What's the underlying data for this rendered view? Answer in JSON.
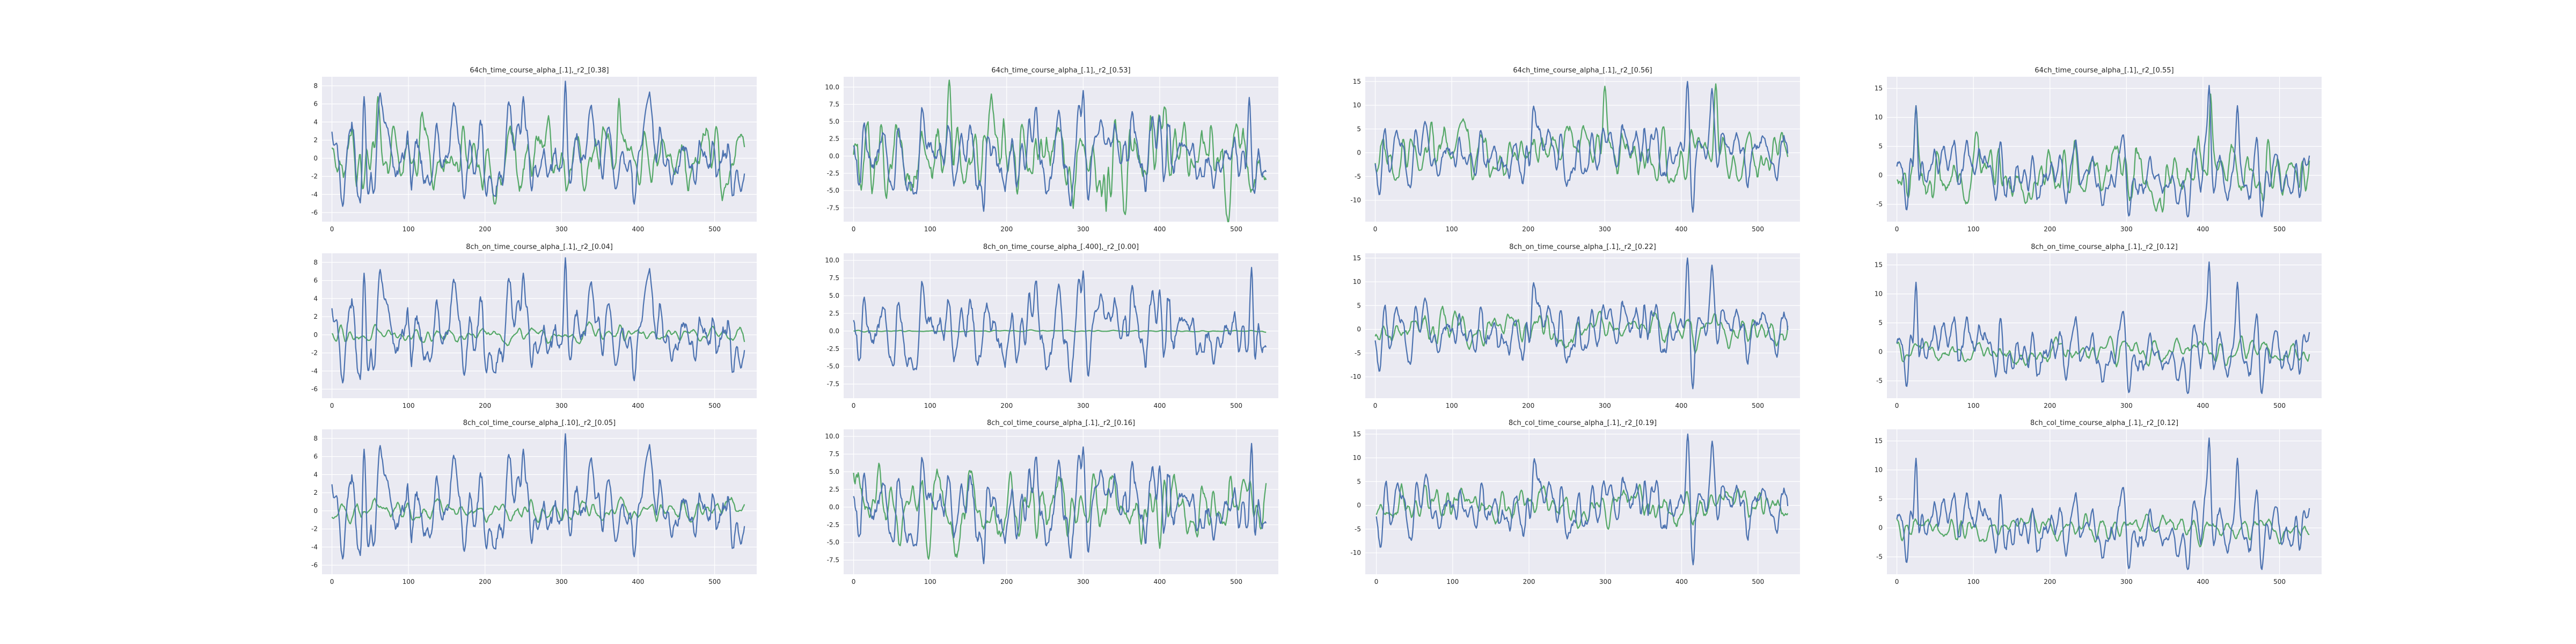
{
  "chart_data": [
    {
      "type": "line",
      "title": "64ch_time_course_alpha_[.1],_r2_[0.38]",
      "xlim": [
        -13,
        555
      ],
      "ylim": [
        -7.0,
        9.0
      ],
      "xticks": [
        0,
        100,
        200,
        300,
        400,
        500
      ],
      "yticks": [
        -6,
        -4,
        -2,
        0,
        2,
        4,
        6,
        8
      ],
      "n_points": 540,
      "series": [
        {
          "color": "#4c72b0",
          "amplitude": 2.6,
          "spikes": [
            [
              305,
              8.5
            ],
            [
              42,
              6.8
            ],
            [
              250,
              6.8
            ]
          ]
        },
        {
          "color": "#55a868",
          "amplitude": 1.9,
          "spikes": [
            [
              60,
              6.8
            ],
            [
              375,
              6.6
            ]
          ]
        }
      ]
    },
    {
      "type": "line",
      "title": "64ch_time_course_alpha_[.1],_r2_[0.53]",
      "xlim": [
        -13,
        555
      ],
      "ylim": [
        -9.5,
        11.5
      ],
      "xticks": [
        0,
        100,
        200,
        300,
        400,
        500
      ],
      "yticks": [
        -7.5,
        -5.0,
        -2.5,
        0.0,
        2.5,
        5.0,
        7.5,
        10.0
      ],
      "n_points": 540,
      "series": [
        {
          "color": "#4c72b0",
          "amplitude": 3.0,
          "spikes": [
            [
              300,
              9.5
            ],
            [
              517,
              8.5
            ],
            [
              170,
              -8.0
            ]
          ]
        },
        {
          "color": "#55a868",
          "amplitude": 3.2,
          "spikes": [
            [
              125,
              11.0
            ],
            [
              330,
              -8.0
            ]
          ]
        }
      ]
    },
    {
      "type": "line",
      "title": "64ch_time_course_alpha_[.1],_r2_[0.56]",
      "xlim": [
        -13,
        555
      ],
      "ylim": [
        -14.5,
        16.0
      ],
      "xticks": [
        0,
        100,
        200,
        300,
        400,
        500
      ],
      "yticks": [
        -10,
        -5,
        0,
        5,
        10,
        15
      ],
      "n_points": 540,
      "series": [
        {
          "color": "#4c72b0",
          "amplitude": 3.2,
          "spikes": [
            [
              408,
              15.0
            ],
            [
              440,
              13.5
            ],
            [
              415,
              -12.5
            ]
          ]
        },
        {
          "color": "#55a868",
          "amplitude": 3.0,
          "spikes": [
            [
              300,
              14.0
            ],
            [
              445,
              14.5
            ]
          ]
        }
      ]
    },
    {
      "type": "line",
      "title": "64ch_time_course_alpha_[.1],_r2_[0.55]",
      "xlim": [
        -13,
        555
      ],
      "ylim": [
        -8.0,
        17.0
      ],
      "xticks": [
        0,
        100,
        200,
        300,
        400,
        500
      ],
      "yticks": [
        -5,
        0,
        5,
        10,
        15
      ],
      "n_points": 540,
      "series": [
        {
          "color": "#4c72b0",
          "amplitude": 2.8,
          "spikes": [
            [
              408,
              15.5
            ],
            [
              445,
              12.0
            ],
            [
              25,
              12.0
            ]
          ]
        },
        {
          "color": "#55a868",
          "amplitude": 2.6,
          "spikes": [
            [
              410,
              14.0
            ],
            [
              25,
              12.0
            ]
          ]
        }
      ]
    },
    {
      "type": "line",
      "title": "8ch_on_time_course_alpha_[.1],_r2_[0.04]",
      "xlim": [
        -13,
        555
      ],
      "ylim": [
        -7.0,
        9.0
      ],
      "xticks": [
        0,
        100,
        200,
        300,
        400,
        500
      ],
      "yticks": [
        -6,
        -4,
        -2,
        0,
        2,
        4,
        6,
        8
      ],
      "n_points": 540,
      "series": [
        {
          "color": "#4c72b0",
          "amplitude": 2.6,
          "spikes": [
            [
              305,
              8.5
            ],
            [
              42,
              6.8
            ],
            [
              250,
              6.8
            ]
          ]
        },
        {
          "color": "#55a868",
          "amplitude": 0.45,
          "spikes": []
        }
      ]
    },
    {
      "type": "line",
      "title": "8ch_on_time_course_alpha_[.400],_r2_[0.00]",
      "xlim": [
        -13,
        555
      ],
      "ylim": [
        -9.5,
        11.0
      ],
      "xticks": [
        0,
        100,
        200,
        300,
        400,
        500
      ],
      "yticks": [
        -7.5,
        -5.0,
        -2.5,
        0.0,
        2.5,
        5.0,
        7.5,
        10.0
      ],
      "n_points": 540,
      "series": [
        {
          "color": "#4c72b0",
          "amplitude": 3.0,
          "spikes": [
            [
              520,
              9.0
            ],
            [
              300,
              8.5
            ]
          ]
        },
        {
          "color": "#55a868",
          "amplitude": 0.05,
          "spikes": []
        }
      ]
    },
    {
      "type": "line",
      "title": "8ch_on_time_course_alpha_[.1],_r2_[0.22]",
      "xlim": [
        -13,
        555
      ],
      "ylim": [
        -14.5,
        16.0
      ],
      "xticks": [
        0,
        100,
        200,
        300,
        400,
        500
      ],
      "yticks": [
        -10,
        -5,
        0,
        5,
        10,
        15
      ],
      "n_points": 540,
      "series": [
        {
          "color": "#4c72b0",
          "amplitude": 3.2,
          "spikes": [
            [
              408,
              15.0
            ],
            [
              440,
              13.5
            ],
            [
              415,
              -12.5
            ]
          ]
        },
        {
          "color": "#55a868",
          "amplitude": 1.8,
          "spikes": []
        }
      ]
    },
    {
      "type": "line",
      "title": "8ch_on_time_course_alpha_[.1],_r2_[0.12]",
      "xlim": [
        -13,
        555
      ],
      "ylim": [
        -8.0,
        17.0
      ],
      "xticks": [
        0,
        100,
        200,
        300,
        400,
        500
      ],
      "yticks": [
        -5,
        0,
        5,
        10,
        15
      ],
      "n_points": 540,
      "series": [
        {
          "color": "#4c72b0",
          "amplitude": 2.8,
          "spikes": [
            [
              408,
              15.5
            ],
            [
              445,
              12.0
            ],
            [
              25,
              12.0
            ]
          ]
        },
        {
          "color": "#55a868",
          "amplitude": 1.1,
          "spikes": []
        }
      ]
    },
    {
      "type": "line",
      "title": "8ch_col_time_course_alpha_[.10],_r2_[0.05]",
      "xlim": [
        -13,
        555
      ],
      "ylim": [
        -7.0,
        9.0
      ],
      "xticks": [
        0,
        100,
        200,
        300,
        400,
        500
      ],
      "yticks": [
        -6,
        -4,
        -2,
        0,
        2,
        4,
        6,
        8
      ],
      "n_points": 540,
      "series": [
        {
          "color": "#4c72b0",
          "amplitude": 2.6,
          "spikes": [
            [
              305,
              8.5
            ],
            [
              42,
              6.8
            ],
            [
              250,
              6.8
            ]
          ]
        },
        {
          "color": "#55a868",
          "amplitude": 0.6,
          "spikes": []
        }
      ]
    },
    {
      "type": "line",
      "title": "8ch_col_time_course_alpha_[.1],_r2_[0.16]",
      "xlim": [
        -13,
        555
      ],
      "ylim": [
        -9.5,
        11.0
      ],
      "xticks": [
        0,
        100,
        200,
        300,
        400,
        500
      ],
      "yticks": [
        -7.5,
        -5.0,
        -2.5,
        0.0,
        2.5,
        5.0,
        7.5,
        10.0
      ],
      "n_points": 540,
      "series": [
        {
          "color": "#4c72b0",
          "amplitude": 3.0,
          "spikes": [
            [
              520,
              9.0
            ],
            [
              300,
              8.5
            ],
            [
              170,
              -8.0
            ]
          ]
        },
        {
          "color": "#55a868",
          "amplitude": 2.6,
          "spikes": []
        }
      ]
    },
    {
      "type": "line",
      "title": "8ch_col_time_course_alpha_[.1],_r2_[0.19]",
      "xlim": [
        -14.5,
        555
      ],
      "ylim": [
        -14.5,
        16.0
      ],
      "xticks": [
        0,
        100,
        200,
        300,
        400,
        500
      ],
      "yticks": [
        -10,
        -5,
        0,
        5,
        10,
        15
      ],
      "n_points": 540,
      "series": [
        {
          "color": "#4c72b0",
          "amplitude": 3.2,
          "spikes": [
            [
              408,
              15.0
            ],
            [
              440,
              13.5
            ],
            [
              415,
              -12.5
            ]
          ]
        },
        {
          "color": "#55a868",
          "amplitude": 1.9,
          "spikes": []
        }
      ]
    },
    {
      "type": "line",
      "title": "8ch_col_time_course_alpha_[.1],_r2_[0.12]",
      "xlim": [
        -13,
        555
      ],
      "ylim": [
        -8.0,
        17.0
      ],
      "xticks": [
        0,
        100,
        200,
        300,
        400,
        500
      ],
      "yticks": [
        -5,
        0,
        5,
        10,
        15
      ],
      "n_points": 540,
      "series": [
        {
          "color": "#4c72b0",
          "amplitude": 2.8,
          "spikes": [
            [
              408,
              15.5
            ],
            [
              445,
              12.0
            ],
            [
              25,
              12.0
            ]
          ]
        },
        {
          "color": "#55a868",
          "amplitude": 1.1,
          "spikes": []
        }
      ]
    }
  ],
  "colors": {
    "panel_bg": "#eaeaf2",
    "grid": "#ffffff",
    "text": "#262626",
    "series_blue": "#4c72b0",
    "series_green": "#55a868"
  }
}
